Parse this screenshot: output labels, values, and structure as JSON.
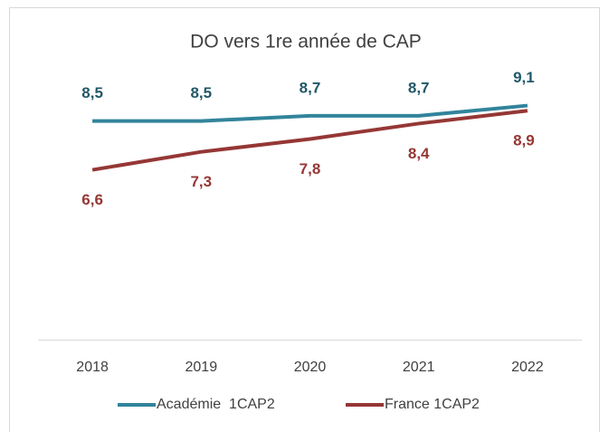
{
  "chart_data": {
    "type": "line",
    "title": "DO vers 1re année de CAP",
    "categories": [
      "2018",
      "2019",
      "2020",
      "2021",
      "2022"
    ],
    "ylim": [
      0,
      10
    ],
    "series": [
      {
        "name": "Académie  1CAP2",
        "color": "#31849b",
        "label_color": "#215968",
        "values": [
          8.5,
          8.5,
          8.7,
          8.7,
          9.1
        ],
        "value_labels": [
          "8,5",
          "8,5",
          "8,7",
          "8,7",
          "9,1"
        ]
      },
      {
        "name": "France 1CAP2",
        "color": "#953735",
        "label_color": "#953735",
        "values": [
          6.6,
          7.3,
          7.8,
          8.4,
          8.9
        ],
        "value_labels": [
          "6,6",
          "7,3",
          "7,8",
          "8,4",
          "8,9"
        ]
      }
    ]
  }
}
